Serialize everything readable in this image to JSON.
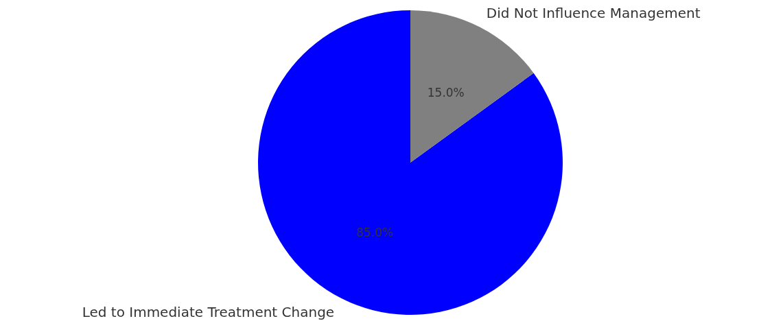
{
  "chart_data": {
    "type": "pie",
    "categories": [
      "Led to Immediate Treatment Change",
      "Did Not Influence Management"
    ],
    "values": [
      85,
      15
    ],
    "colors": [
      "#0000ff",
      "#808080"
    ],
    "value_labels": [
      "85.0%",
      "15.0%"
    ],
    "legend": false
  }
}
